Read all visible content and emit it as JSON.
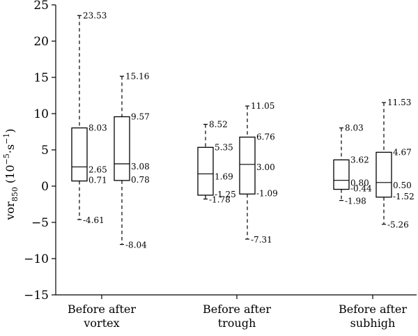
{
  "chart_data": {
    "type": "box",
    "ylabel": {
      "base": "vor",
      "subscript": "850",
      "unit_open": " (10",
      "unit_exp": "−5",
      "unit_mid": "·s",
      "unit_exp2": "−1",
      "unit_close": ")"
    },
    "ylim": [
      -15,
      25
    ],
    "yticks": [
      {
        "value": 25,
        "label": "25"
      },
      {
        "value": 20,
        "label": "20"
      },
      {
        "value": 15,
        "label": "15"
      },
      {
        "value": 10,
        "label": "10"
      },
      {
        "value": 5,
        "label": "5"
      },
      {
        "value": 0,
        "label": "0"
      },
      {
        "value": -5,
        "label": "−5"
      },
      {
        "value": -10,
        "label": "−10"
      },
      {
        "value": -15,
        "label": "−15"
      }
    ],
    "groups": [
      {
        "label_line1": "Before after",
        "label_line2": "vortex"
      },
      {
        "label_line1": "Before after",
        "label_line2": "trough"
      },
      {
        "label_line1": "Before after",
        "label_line2": "subhigh"
      }
    ],
    "boxes": [
      {
        "group": 0,
        "max": 23.53,
        "q3": 8.03,
        "median": 2.65,
        "q1": 0.71,
        "min": -4.61,
        "labels": {
          "max": "23.53",
          "q3": "8.03",
          "median": "2.65",
          "q1": "0.71",
          "min": "-4.61"
        }
      },
      {
        "group": 0,
        "max": 15.16,
        "q3": 9.57,
        "median": 3.08,
        "q1": 0.78,
        "min": -8.04,
        "labels": {
          "max": "15.16",
          "q3": "9.57",
          "median": "3.08",
          "q1": "0.78",
          "min": "-8.04"
        }
      },
      {
        "group": 1,
        "max": 8.52,
        "q3": 5.35,
        "median": 1.69,
        "q1": -1.25,
        "min": -1.78,
        "labels": {
          "max": "8.52",
          "q3": "5.35",
          "median": "1.69",
          "q1": "-1.25",
          "min": "-1.78"
        }
      },
      {
        "group": 1,
        "max": 11.05,
        "q3": 6.76,
        "median": 3.0,
        "q1": -1.09,
        "min": -7.31,
        "labels": {
          "max": "11.05",
          "q3": "6.76",
          "median": "3.00",
          "q1": "-1.09",
          "min": "-7.31"
        }
      },
      {
        "group": 2,
        "max": 8.03,
        "q3": 3.62,
        "median": 0.8,
        "q1": -0.44,
        "min": -1.98,
        "labels": {
          "max": "8.03",
          "q3": "3.62",
          "median": "0.80",
          "q1": "-0.44",
          "min": "-1.98"
        }
      },
      {
        "group": 2,
        "max": 11.53,
        "q3": 4.67,
        "median": 0.5,
        "q1": -1.52,
        "min": -5.26,
        "labels": {
          "max": "11.53",
          "q3": "4.67",
          "median": "0.50",
          "q1": "-1.52",
          "min": "-5.26"
        }
      }
    ],
    "grid": false,
    "legend": "none"
  }
}
